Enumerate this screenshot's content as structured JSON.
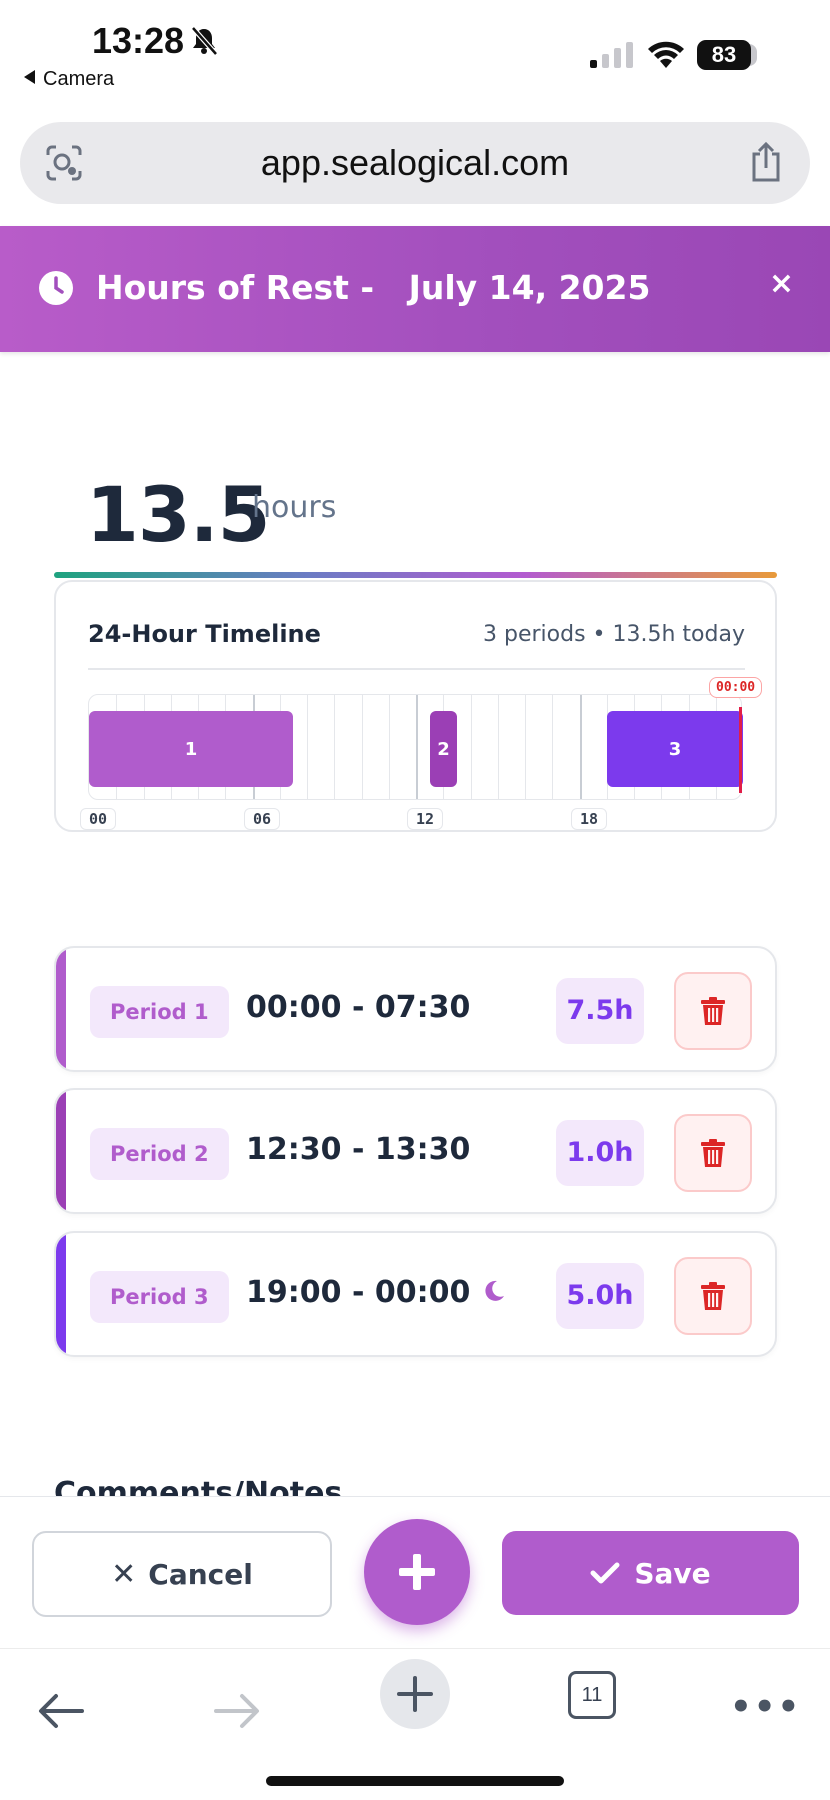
{
  "status_bar": {
    "time": "13:28",
    "back_app": "Camera",
    "battery": "83",
    "icons": [
      "bell-slash-icon",
      "signal-icon",
      "wifi-icon",
      "battery-icon"
    ]
  },
  "browser": {
    "url": "app.sealogical.com",
    "tab_count": "11"
  },
  "header": {
    "title": "Hours of Rest -   July 14, 2025",
    "close": "×",
    "icon": "clock-icon"
  },
  "summary": {
    "total_value": "13.5",
    "total_unit": "hours"
  },
  "timeline": {
    "title": "24-Hour Timeline",
    "summary": "3 periods • 13.5h today",
    "now_label": "00:00",
    "ticks": [
      "00",
      "06",
      "12",
      "18"
    ],
    "blocks": [
      {
        "label": "1",
        "start_h": 0.0,
        "end_h": 7.5,
        "color": "#b05ccc"
      },
      {
        "label": "2",
        "start_h": 12.5,
        "end_h": 13.5,
        "color": "#9b3fb5"
      },
      {
        "label": "3",
        "start_h": 19.0,
        "end_h": 24.0,
        "color": "#7c3aed"
      }
    ]
  },
  "periods": [
    {
      "label": "Period 1",
      "range": "00:00 - 07:30",
      "duration": "7.5h",
      "accent": "#b05ccc",
      "overnight": false
    },
    {
      "label": "Period 2",
      "range": "12:30 - 13:30",
      "duration": "1.0h",
      "accent": "#9b3fb5",
      "overnight": false
    },
    {
      "label": "Period 3",
      "range": "19:00 - 00:00",
      "duration": "5.0h",
      "accent": "#7c3aed",
      "overnight": true
    }
  ],
  "comments": {
    "heading": "Comments/Notes"
  },
  "actions": {
    "cancel": "Cancel",
    "add": "+",
    "save": "Save"
  },
  "colors": {
    "accent": "#b05ccc",
    "danger": "#dc2626"
  }
}
